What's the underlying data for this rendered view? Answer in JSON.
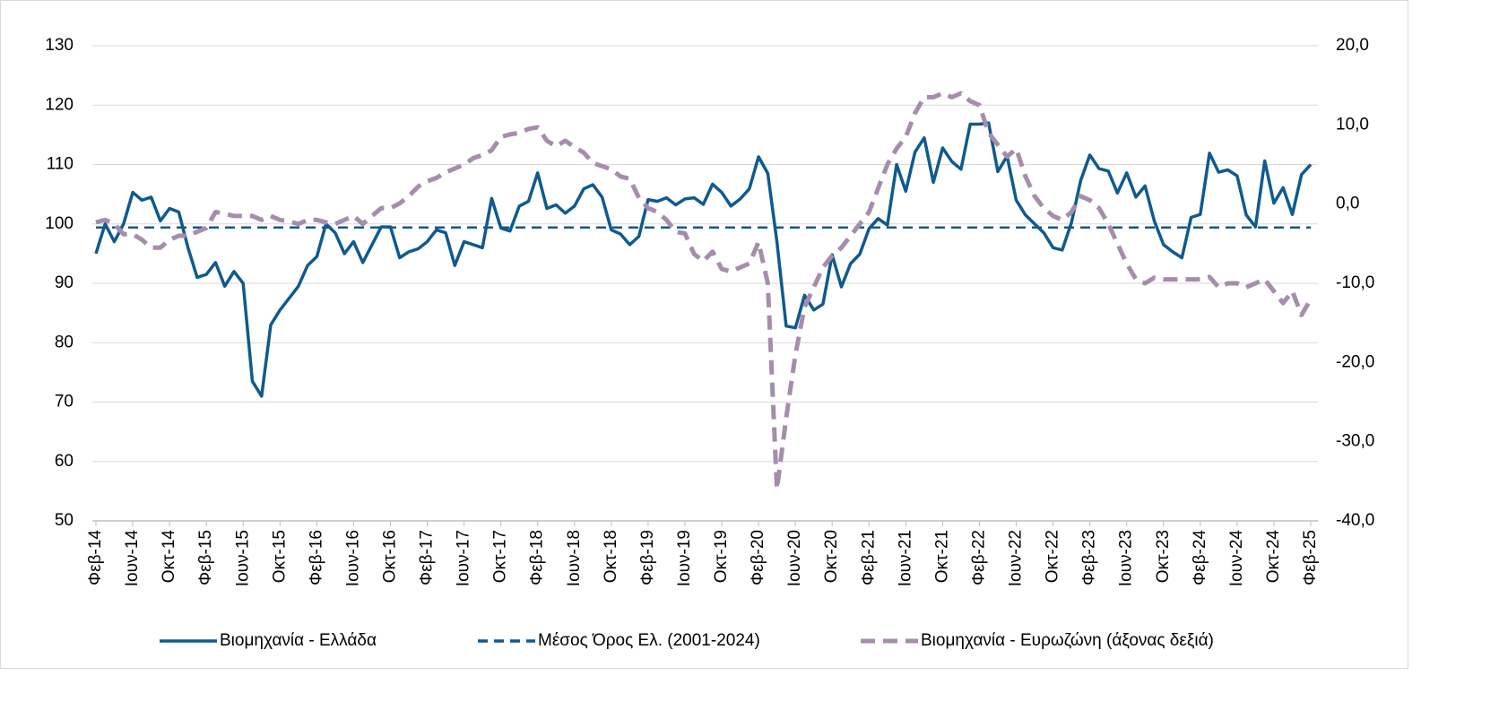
{
  "chart_data": {
    "type": "line",
    "categories": [
      "Φεβ-14",
      null,
      null,
      null,
      "Ιουν-14",
      null,
      null,
      null,
      "Οκτ-14",
      null,
      null,
      null,
      "Φεβ-15",
      null,
      null,
      null,
      "Ιουν-15",
      null,
      null,
      null,
      "Οκτ-15",
      null,
      null,
      null,
      "Φεβ-16",
      null,
      null,
      null,
      "Ιουν-16",
      null,
      null,
      null,
      "Οκτ-16",
      null,
      null,
      null,
      "Φεβ-17",
      null,
      null,
      null,
      "Ιουν-17",
      null,
      null,
      null,
      "Οκτ-17",
      null,
      null,
      null,
      "Φεβ-18",
      null,
      null,
      null,
      "Ιουν-18",
      null,
      null,
      null,
      "Οκτ-18",
      null,
      null,
      null,
      "Φεβ-19",
      null,
      null,
      null,
      "Ιουν-19",
      null,
      null,
      null,
      "Οκτ-19",
      null,
      null,
      null,
      "Φεβ-20",
      null,
      null,
      null,
      "Ιουν-20",
      null,
      null,
      null,
      "Οκτ-20",
      null,
      null,
      null,
      "Φεβ-21",
      null,
      null,
      null,
      "Ιουν-21",
      null,
      null,
      null,
      "Οκτ-21",
      null,
      null,
      null,
      "Φεβ-22",
      null,
      null,
      null,
      "Ιουν-22",
      null,
      null,
      null,
      "Οκτ-22",
      null,
      null,
      null,
      "Φεβ-23",
      null,
      null,
      null,
      "Ιουν-23",
      null,
      null,
      null,
      "Οκτ-23",
      null,
      null,
      null,
      "Φεβ-24",
      null,
      null,
      null,
      "Ιουν-24",
      null,
      null,
      null,
      "Οκτ-24",
      null,
      null,
      null,
      "Φεβ-25"
    ],
    "series": [
      {
        "name": "Βιομηχανία  - Ελλάδα",
        "color": "#0f5a8e",
        "dash": false,
        "values": [
          95,
          100,
          97,
          100,
          105.3,
          104,
          104.5,
          100.5,
          102.6,
          102,
          96,
          91,
          91.5,
          93.5,
          89.5,
          92,
          90,
          73.5,
          71,
          83,
          85.5,
          87.5,
          89.5,
          93,
          94.5,
          100,
          98.5,
          95,
          97,
          93.5,
          96.5,
          99.5,
          99.5,
          94.3,
          95.3,
          95.8,
          97,
          99,
          98.5,
          93,
          97,
          96.5,
          96,
          104.3,
          99.3,
          98.8,
          103,
          103.8,
          108.6,
          102.6,
          103.2,
          101.8,
          103,
          105.9,
          106.6,
          104.5,
          99,
          98.3,
          96.5,
          97.9,
          104.1,
          103.8,
          104.4,
          103.2,
          104.2,
          104.4,
          103.3,
          106.7,
          105.3,
          103,
          104.2,
          105.9,
          111.3,
          108.5,
          97,
          82.8,
          82.5,
          88,
          85.5,
          86.5,
          94.8,
          89.4,
          93.3,
          94.9,
          99.2,
          100.9,
          99.8,
          110,
          105.5,
          112.1,
          114.5,
          107,
          112.8,
          110.5,
          109.2,
          116.8,
          116.8,
          117,
          108.8,
          111.4,
          104,
          101.5,
          100,
          98.5,
          96,
          95.6,
          100.2,
          107.3,
          111.6,
          109.3,
          108.9,
          105.2,
          108.6,
          104.5,
          106.4,
          100.5,
          96.5,
          95.3,
          94.3,
          101.1,
          101.6,
          111.9,
          108.7,
          109.1,
          108.1,
          101.5,
          99.5,
          110.6,
          103.5,
          106.1,
          101.6,
          108.3,
          110
        ]
      },
      {
        "name": "Μέσος Όρος Ελ. (2001-2024)",
        "color": "#0f5a8e",
        "dash": true,
        "value": 99.4
      },
      {
        "name": "Βιομηχανία - Ευρωζώνη (άξονας δεξιά)",
        "color": "#a68dab",
        "dash": true,
        "axis": "y2",
        "values": [
          -2.3,
          -2,
          -2.5,
          -3.8,
          -3.8,
          -4.5,
          -5.5,
          -5.5,
          -4.5,
          -4,
          -4,
          -3.5,
          -3,
          -1,
          -1.2,
          -1.5,
          -1.5,
          -1.5,
          -2,
          -1.5,
          -2,
          -2.2,
          -2.5,
          -2,
          -2,
          -2.3,
          -2.5,
          -2,
          -1.5,
          -2.5,
          -1.5,
          -0.5,
          -0.5,
          0.1,
          1,
          2.2,
          2.9,
          3.3,
          4,
          4.5,
          5,
          5.8,
          6.2,
          6.8,
          8.5,
          8.8,
          9,
          9.5,
          9.7,
          8,
          7.3,
          8,
          7.2,
          6.5,
          5.2,
          4.8,
          4.4,
          3.5,
          3.2,
          0.8,
          -0.5,
          -1,
          -2,
          -3.5,
          -3.7,
          -6.3,
          -7.2,
          -6,
          -8.2,
          -8.5,
          -8,
          -7.5,
          -4.8,
          -10,
          -36,
          -27,
          -19,
          -13,
          -10.5,
          -8,
          -6.5,
          -5.5,
          -4,
          -2.5,
          -1,
          2,
          5,
          7,
          8.5,
          11.5,
          13.5,
          13.5,
          14,
          13.5,
          14,
          13,
          12.5,
          9,
          7.5,
          6,
          7,
          3.5,
          1,
          -0.5,
          -1.5,
          -2,
          -1,
          1,
          0.5,
          -0.5,
          -2.5,
          -5,
          -7.5,
          -9.5,
          -10,
          -9.3,
          -9.5,
          -9.5,
          -9.5,
          -9.5,
          -9.5,
          -9.2,
          -10.5,
          -10,
          -10,
          -10.5,
          -10,
          -9.5,
          -11,
          -12.5,
          -11,
          -14,
          -12
        ]
      }
    ],
    "ylim": [
      50,
      130
    ],
    "yticks": [
      50,
      60,
      70,
      80,
      90,
      100,
      110,
      120,
      130
    ],
    "y2lim": [
      -40,
      20
    ],
    "y2ticks": [
      {
        "value": -40,
        "label": "-40,0"
      },
      {
        "value": -30,
        "label": "-30,0"
      },
      {
        "value": -20,
        "label": "-20,0"
      },
      {
        "value": -10,
        "label": "-10,0"
      },
      {
        "value": 0,
        "label": "0,0"
      },
      {
        "value": 10,
        "label": "10,0"
      },
      {
        "value": 20,
        "label": "20,0"
      }
    ],
    "grid": true,
    "legend": "bottom"
  }
}
